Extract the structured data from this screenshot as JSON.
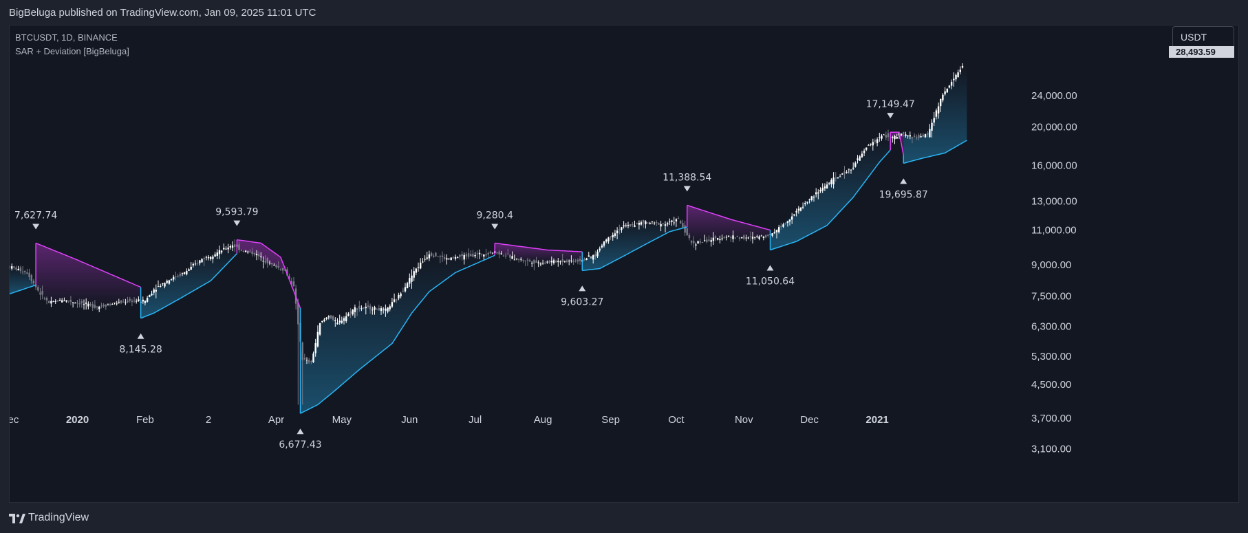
{
  "header": {
    "attribution": "BigBeluga published on TradingView.com, Jan 09, 2025 11:01 UTC"
  },
  "legend": {
    "symbol_line": "BTCUSDT, 1D, BINANCE",
    "indicator_line": "SAR + Deviation [BigBeluga]"
  },
  "currency_button": "USDT",
  "last_price_label": "28,493.59",
  "footer": {
    "brand": "TradingView"
  },
  "colors": {
    "background": "#131722",
    "panel": "#1e222d",
    "bull_line": "#29b6f6",
    "bear_line": "#e040fb",
    "candle_up": "#ffffff",
    "candle_down": "#787b86",
    "text": "#d1d4dc"
  },
  "chart_data": {
    "type": "candlestick",
    "title": "BTCUSDT, 1D, BINANCE",
    "indicator": "SAR + Deviation [BigBeluga]",
    "y_scale": "log",
    "ylim": [
      2700,
      29500
    ],
    "y_ticks": [
      {
        "value": 24000,
        "label": "24,000.00"
      },
      {
        "value": 20000,
        "label": "20,000.00"
      },
      {
        "value": 16000,
        "label": "16,000.00"
      },
      {
        "value": 13000,
        "label": "13,000.00"
      },
      {
        "value": 11000,
        "label": "11,000.00"
      },
      {
        "value": 9000,
        "label": "9,000.00"
      },
      {
        "value": 7500,
        "label": "7,500.00"
      },
      {
        "value": 6300,
        "label": "6,300.00"
      },
      {
        "value": 5300,
        "label": "5,300.00"
      },
      {
        "value": 4500,
        "label": "4,500.00"
      },
      {
        "value": 3700,
        "label": "3,700.00"
      },
      {
        "value": 3100,
        "label": "3,100.00"
      }
    ],
    "x_range_days": [
      -28,
      377
    ],
    "x_ticks": [
      {
        "day": 31,
        "label": "Dec",
        "bold": false
      },
      {
        "day": 62,
        "label": "2020",
        "bold": true
      },
      {
        "day": 93,
        "label": "Feb",
        "bold": false
      },
      {
        "day": 122,
        "label": "2",
        "bold": false
      },
      {
        "day": 153,
        "label": "Apr",
        "bold": false
      },
      {
        "day": 183,
        "label": "May",
        "bold": false
      },
      {
        "day": 214,
        "label": "Jun",
        "bold": false
      },
      {
        "day": 244,
        "label": "Jul",
        "bold": false
      },
      {
        "day": 275,
        "label": "Aug",
        "bold": false
      },
      {
        "day": 306,
        "label": "Sep",
        "bold": false
      },
      {
        "day": 336,
        "label": "Oct",
        "bold": false
      },
      {
        "day": 367,
        "label": "Nov",
        "bold": false
      },
      {
        "day": 397,
        "label": "Dec",
        "bold": false
      },
      {
        "day": 428,
        "label": "2021",
        "bold": true
      }
    ],
    "price_path": [
      [
        0,
        8900
      ],
      [
        8,
        8600
      ],
      [
        14,
        7600
      ],
      [
        18,
        7200
      ],
      [
        24,
        7350
      ],
      [
        32,
        7200
      ],
      [
        40,
        7050
      ],
      [
        48,
        7200
      ],
      [
        56,
        7300
      ],
      [
        62,
        7300
      ],
      [
        66,
        7800
      ],
      [
        72,
        8200
      ],
      [
        80,
        8600
      ],
      [
        88,
        9300
      ],
      [
        96,
        9700
      ],
      [
        102,
        10100
      ],
      [
        106,
        9800
      ],
      [
        112,
        9600
      ],
      [
        120,
        9000
      ],
      [
        126,
        8700
      ],
      [
        130,
        7900
      ],
      [
        134,
        5200
      ],
      [
        138,
        5100
      ],
      [
        142,
        6400
      ],
      [
        146,
        6700
      ],
      [
        150,
        6400
      ],
      [
        158,
        7000
      ],
      [
        166,
        7000
      ],
      [
        172,
        6900
      ],
      [
        178,
        7500
      ],
      [
        186,
        8800
      ],
      [
        192,
        9600
      ],
      [
        200,
        9300
      ],
      [
        210,
        9500
      ],
      [
        218,
        9600
      ],
      [
        222,
        9700
      ],
      [
        232,
        9300
      ],
      [
        242,
        9100
      ],
      [
        252,
        9200
      ],
      [
        260,
        9200
      ],
      [
        268,
        9500
      ],
      [
        272,
        10300
      ],
      [
        280,
        11200
      ],
      [
        290,
        11500
      ],
      [
        300,
        11400
      ],
      [
        306,
        11700
      ],
      [
        312,
        10200
      ],
      [
        318,
        10300
      ],
      [
        328,
        10600
      ],
      [
        338,
        10500
      ],
      [
        348,
        10700
      ],
      [
        355,
        11500
      ],
      [
        365,
        13000
      ],
      [
        375,
        14500
      ],
      [
        385,
        15700
      ],
      [
        393,
        18000
      ],
      [
        400,
        19100
      ],
      [
        404,
        18700
      ],
      [
        408,
        19200
      ],
      [
        414,
        18800
      ],
      [
        420,
        19100
      ],
      [
        426,
        23500
      ],
      [
        432,
        26500
      ],
      [
        436,
        28500
      ]
    ],
    "sar_segments": [
      {
        "trend": "bull",
        "points": [
          [
            0,
            7600
          ],
          [
            12,
            8000
          ]
        ]
      },
      {
        "trend": "bear",
        "points": [
          [
            12,
            10200
          ],
          [
            30,
            9300
          ],
          [
            60,
            7900
          ]
        ]
      },
      {
        "trend": "bull",
        "points": [
          [
            60,
            6600
          ],
          [
            66,
            6800
          ],
          [
            78,
            7400
          ],
          [
            92,
            8200
          ],
          [
            104,
            9600
          ]
        ]
      },
      {
        "trend": "bear",
        "points": [
          [
            104,
            10400
          ],
          [
            115,
            10200
          ],
          [
            124,
            9400
          ],
          [
            133,
            7000
          ]
        ]
      },
      {
        "trend": "bull",
        "points": [
          [
            133,
            3800
          ],
          [
            141,
            4000
          ],
          [
            148,
            4300
          ],
          [
            160,
            4900
          ],
          [
            175,
            5700
          ],
          [
            184,
            6800
          ],
          [
            192,
            7700
          ],
          [
            204,
            8600
          ],
          [
            222,
            9500
          ]
        ]
      },
      {
        "trend": "bear",
        "points": [
          [
            222,
            10200
          ],
          [
            246,
            9800
          ],
          [
            262,
            9700
          ]
        ]
      },
      {
        "trend": "bull",
        "points": [
          [
            262,
            8700
          ],
          [
            270,
            8800
          ],
          [
            280,
            9400
          ],
          [
            292,
            10200
          ],
          [
            302,
            10900
          ],
          [
            310,
            11200
          ]
        ]
      },
      {
        "trend": "bear",
        "points": [
          [
            310,
            12700
          ],
          [
            330,
            11700
          ],
          [
            348,
            11000
          ]
        ]
      },
      {
        "trend": "bull",
        "points": [
          [
            348,
            9800
          ],
          [
            360,
            10300
          ],
          [
            374,
            11300
          ],
          [
            386,
            13300
          ],
          [
            398,
            16300
          ],
          [
            403,
            17500
          ]
        ]
      },
      {
        "trend": "bear",
        "points": [
          [
            403,
            19400
          ],
          [
            407,
            19400
          ],
          [
            409,
            17000
          ]
        ]
      },
      {
        "trend": "bull",
        "points": [
          [
            409,
            16200
          ],
          [
            418,
            16700
          ],
          [
            428,
            17200
          ],
          [
            438,
            18500
          ]
        ]
      }
    ],
    "annotations": [
      {
        "day": 12,
        "price": 10200,
        "label": "7,627.74",
        "direction": "down"
      },
      {
        "day": 60,
        "price": 6600,
        "label": "8,145.28",
        "direction": "up"
      },
      {
        "day": 104,
        "price": 10400,
        "label": "9,593.79",
        "direction": "down"
      },
      {
        "day": 133,
        "price": 3800,
        "label": "6,677.43",
        "direction": "up"
      },
      {
        "day": 222,
        "price": 10200,
        "label": "9,280.4",
        "direction": "down"
      },
      {
        "day": 262,
        "price": 8700,
        "label": "9,603.27",
        "direction": "up"
      },
      {
        "day": 310,
        "price": 12700,
        "label": "11,388.54",
        "direction": "down"
      },
      {
        "day": 348,
        "price": 9800,
        "label": "11,050.64",
        "direction": "up"
      },
      {
        "day": 403,
        "price": 19400,
        "label": "17,149.47",
        "direction": "down"
      },
      {
        "day": 409,
        "price": 16200,
        "label": "19,695.87",
        "direction": "up"
      }
    ]
  }
}
